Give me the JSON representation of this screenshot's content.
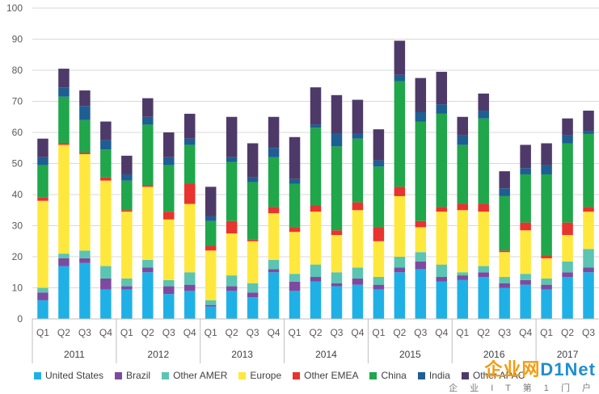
{
  "chart_data": {
    "type": "bar",
    "stacked": true,
    "ylim": [
      0,
      100
    ],
    "y_ticks": [
      0,
      10,
      20,
      30,
      40,
      50,
      60,
      70,
      80,
      90,
      100
    ],
    "grid": true,
    "legend_position": "bottom",
    "years": [
      {
        "label": "2011",
        "quarters": 4
      },
      {
        "label": "2012",
        "quarters": 4
      },
      {
        "label": "2013",
        "quarters": 4
      },
      {
        "label": "2014",
        "quarters": 4
      },
      {
        "label": "2015",
        "quarters": 4
      },
      {
        "label": "2016",
        "quarters": 4
      },
      {
        "label": "2017",
        "quarters": 3
      }
    ],
    "categories": [
      "Q1",
      "Q2",
      "Q3",
      "Q4",
      "Q1",
      "Q2",
      "Q3",
      "Q4",
      "Q1",
      "Q2",
      "Q3",
      "Q4",
      "Q1",
      "Q2",
      "Q3",
      "Q4",
      "Q1",
      "Q2",
      "Q3",
      "Q4",
      "Q1",
      "Q2",
      "Q3",
      "Q4",
      "Q1",
      "Q2",
      "Q3"
    ],
    "series": [
      {
        "name": "United States",
        "color": "#1fb1e6",
        "values": [
          6,
          17,
          18,
          9.5,
          9.5,
          15,
          8,
          9,
          4,
          9,
          7,
          15,
          9,
          12,
          10.5,
          11,
          9.5,
          15,
          16,
          12,
          12.5,
          13.5,
          10,
          11,
          9.5,
          13.5,
          15
        ]
      },
      {
        "name": "Brazil",
        "color": "#7e4aa0",
        "values": [
          2.5,
          2.5,
          1.5,
          3.5,
          1,
          1.5,
          2.5,
          2,
          0.5,
          1.5,
          1.5,
          1,
          3,
          1.5,
          1,
          2,
          1.5,
          1.5,
          2.5,
          1.5,
          1.5,
          1.5,
          1.5,
          1.5,
          1.5,
          1.5,
          1.5
        ]
      },
      {
        "name": "Other AMER",
        "color": "#5bc4b3",
        "values": [
          1.5,
          1.5,
          2.5,
          4,
          2.5,
          2.5,
          2,
          4,
          1.5,
          3.5,
          3,
          3,
          2.5,
          4,
          3.5,
          3.5,
          2.5,
          3.5,
          3,
          4,
          1,
          2,
          2,
          2,
          2,
          3.5,
          6
        ]
      },
      {
        "name": "Europe",
        "color": "#ffe83d",
        "values": [
          28,
          35,
          31,
          27.5,
          21.5,
          23.5,
          19.5,
          22,
          16,
          13.5,
          13.5,
          15,
          13.5,
          17,
          12,
          18.5,
          11.5,
          19.5,
          8,
          17,
          20,
          17.5,
          8,
          14,
          6.5,
          8.5,
          12
        ]
      },
      {
        "name": "Other EMEA",
        "color": "#e8332e",
        "values": [
          1,
          0.5,
          0.5,
          1,
          0.5,
          0.5,
          2.5,
          6.5,
          1.5,
          4,
          0.5,
          2,
          1.5,
          2,
          1.5,
          2.5,
          4.5,
          3,
          2,
          1.5,
          2,
          2.5,
          0.5,
          2.5,
          1,
          4,
          1.5
        ]
      },
      {
        "name": "China",
        "color": "#20a64b",
        "values": [
          10.5,
          15,
          10.5,
          9,
          9.5,
          19.5,
          15,
          12.5,
          8,
          19,
          18.5,
          16,
          14,
          25,
          27,
          20.5,
          19.5,
          34,
          32,
          30,
          19,
          27.5,
          17.5,
          15.5,
          26,
          25.5,
          23.5
        ]
      },
      {
        "name": "India",
        "color": "#1e5e93",
        "values": [
          2.5,
          3,
          4.5,
          3,
          2,
          2.5,
          2.5,
          2,
          1.5,
          1.5,
          1.5,
          3,
          1.5,
          1,
          4,
          1.5,
          2,
          2,
          3,
          3,
          3,
          2.5,
          2.5,
          2,
          3,
          2.5,
          1
        ]
      },
      {
        "name": "Other APAC",
        "color": "#4e3a68",
        "values": [
          6,
          6,
          5,
          6,
          6,
          6,
          8,
          8,
          9.5,
          13,
          11,
          10,
          13.5,
          12,
          12.5,
          11,
          10,
          11,
          11,
          10.5,
          6,
          5.5,
          5.5,
          7.5,
          7,
          5.5,
          6.5
        ]
      }
    ]
  },
  "watermark": {
    "brand_cn": "企业网",
    "brand_en": "D1Net",
    "sub": "企 业 I T 第 1 门 户"
  }
}
